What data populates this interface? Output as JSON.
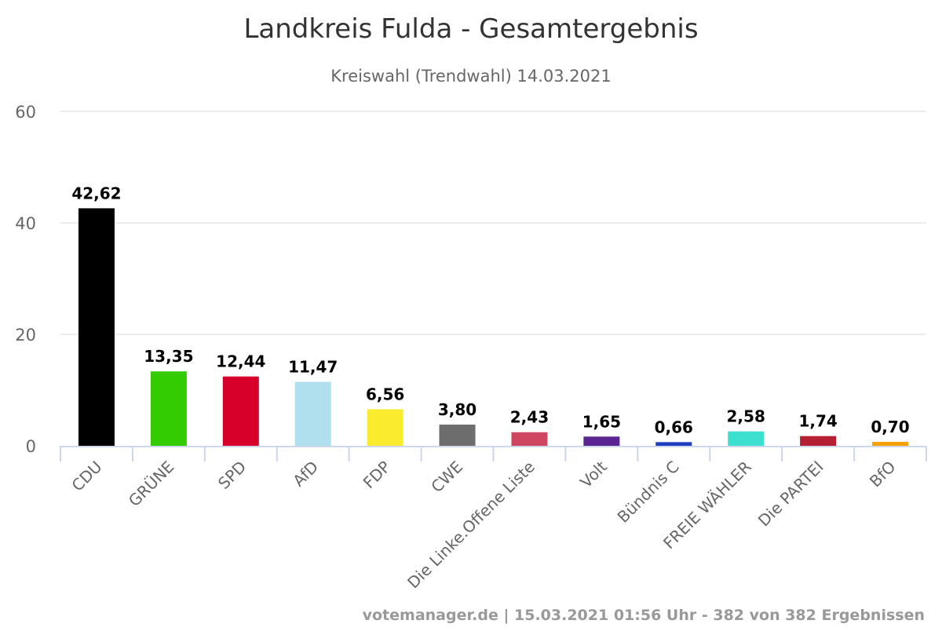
{
  "chart_data": {
    "type": "bar",
    "title": "Landkreis Fulda - Gesamtergebnis",
    "subtitle": "Kreiswahl (Trendwahl) 14.03.2021",
    "xlabel": "",
    "ylabel": "",
    "ylim": [
      0,
      60
    ],
    "yticks": [
      0,
      20,
      40,
      60
    ],
    "grid": true,
    "categories": [
      "CDU",
      "GRÜNE",
      "SPD",
      "AfD",
      "FDP",
      "CWE",
      "Die Linke.Offene Liste",
      "Volt",
      "Bündnis C",
      "FREIE WÄHLER",
      "Die PARTEI",
      "BfO"
    ],
    "values": [
      42.62,
      13.35,
      12.44,
      11.47,
      6.56,
      3.8,
      2.43,
      1.65,
      0.66,
      2.58,
      1.74,
      0.7
    ],
    "value_labels": [
      "42,62",
      "13,35",
      "12,44",
      "11,47",
      "6,56",
      "3,80",
      "2,43",
      "1,65",
      "0,66",
      "2,58",
      "1,74",
      "0,70"
    ],
    "colors": [
      "#000000",
      "#33cc00",
      "#d7002a",
      "#b0dfee",
      "#fbeb2f",
      "#6d6d6d",
      "#cf4660",
      "#5a2590",
      "#1d3fbf",
      "#3ddfcf",
      "#b41f32",
      "#f5a200"
    ],
    "credits": "votemanager.de | 15.03.2021 01:56 Uhr - 382 von 382 Ergebnissen"
  }
}
